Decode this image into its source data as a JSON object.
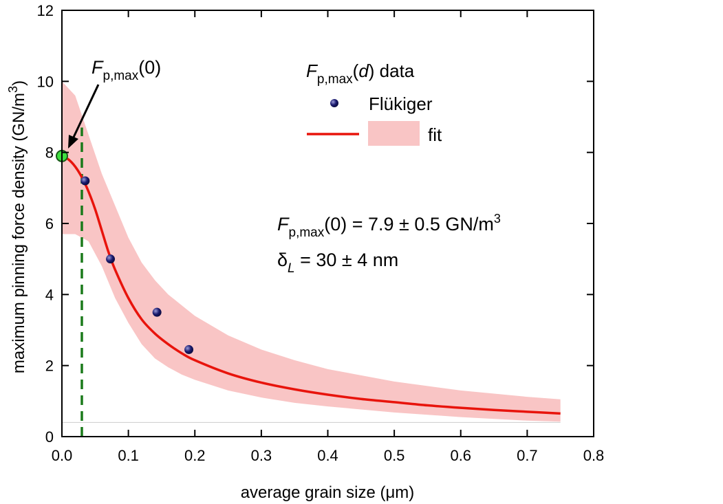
{
  "chart_data": {
    "type": "scatter",
    "xlabel": "average grain size (μm)",
    "ylabel": "maximum pinning force density (GN/m",
    "ylabel_sup": "3",
    "ylabel_tail": ")",
    "xlim": [
      0,
      0.8
    ],
    "ylim": [
      0,
      12
    ],
    "x_ticks": [
      "0.0",
      "0.1",
      "0.2",
      "0.3",
      "0.4",
      "0.5",
      "0.6",
      "0.7",
      "0.8"
    ],
    "y_ticks": [
      "0",
      "2",
      "4",
      "6",
      "8",
      "10",
      "12"
    ],
    "grid": false,
    "series": [
      {
        "name": "Flükiger",
        "kind": "points",
        "color": "#1a1a6e",
        "x": [
          0.035,
          0.073,
          0.143,
          0.191
        ],
        "y": [
          7.2,
          5.0,
          3.5,
          2.45
        ]
      },
      {
        "name": "fit",
        "kind": "line",
        "color": "#e8140c",
        "x": [
          0,
          0.01,
          0.02,
          0.03,
          0.04,
          0.05,
          0.06,
          0.07,
          0.08,
          0.1,
          0.12,
          0.14,
          0.16,
          0.18,
          0.2,
          0.25,
          0.3,
          0.35,
          0.4,
          0.45,
          0.5,
          0.55,
          0.6,
          0.65,
          0.7,
          0.75
        ],
        "y": [
          7.9,
          7.8,
          7.6,
          7.3,
          6.9,
          6.4,
          5.8,
          5.2,
          4.7,
          3.9,
          3.3,
          2.9,
          2.6,
          2.35,
          2.15,
          1.78,
          1.52,
          1.33,
          1.18,
          1.06,
          0.97,
          0.88,
          0.81,
          0.75,
          0.7,
          0.65
        ]
      },
      {
        "name": "confidence band",
        "kind": "band",
        "color": "#f9c5c5",
        "x": [
          0,
          0.02,
          0.04,
          0.06,
          0.08,
          0.1,
          0.12,
          0.14,
          0.16,
          0.18,
          0.2,
          0.25,
          0.3,
          0.35,
          0.4,
          0.5,
          0.6,
          0.7,
          0.75
        ],
        "upper": [
          10.0,
          9.6,
          8.5,
          7.4,
          6.5,
          5.6,
          4.9,
          4.4,
          4.0,
          3.7,
          3.4,
          2.85,
          2.45,
          2.15,
          1.9,
          1.55,
          1.3,
          1.12,
          1.05
        ],
        "lower": [
          5.7,
          5.7,
          5.5,
          4.8,
          3.9,
          3.2,
          2.6,
          2.2,
          1.95,
          1.75,
          1.6,
          1.3,
          1.1,
          0.95,
          0.85,
          0.68,
          0.55,
          0.45,
          0.42
        ]
      },
      {
        "name": "F_p,max(0)",
        "kind": "marker",
        "color": "#3fe03f",
        "x": [
          0
        ],
        "y": [
          7.9
        ]
      }
    ],
    "reference_line": {
      "x": 0.03,
      "y_from": 0,
      "y_to": 8.7,
      "color": "#1a7a1a",
      "style": "dashed"
    },
    "baseline_line": {
      "y": 0.4,
      "x_from": 0,
      "x_to": 0.75,
      "color": "#cccccc"
    },
    "annotations": {
      "arrow_label_main": "F",
      "arrow_label_sub": "p,max",
      "arrow_label_tail": "(0)",
      "result_line1_main": "F",
      "result_line1_sub": "p,max",
      "result_line1_tail": "(0) = 7.9 ± 0.5 GN/m",
      "result_line1_sup": "3",
      "result_line2_main": "δ",
      "result_line2_sub": "L",
      "result_line2_tail": " = 30 ± 4 nm"
    },
    "legend": {
      "placement": "top-right",
      "title_main": "F",
      "title_sub": "p,max",
      "title_paren_open": "(",
      "title_var": "d",
      "title_tail": ") data",
      "points_label": "Flükiger",
      "fit_label": "fit"
    }
  }
}
